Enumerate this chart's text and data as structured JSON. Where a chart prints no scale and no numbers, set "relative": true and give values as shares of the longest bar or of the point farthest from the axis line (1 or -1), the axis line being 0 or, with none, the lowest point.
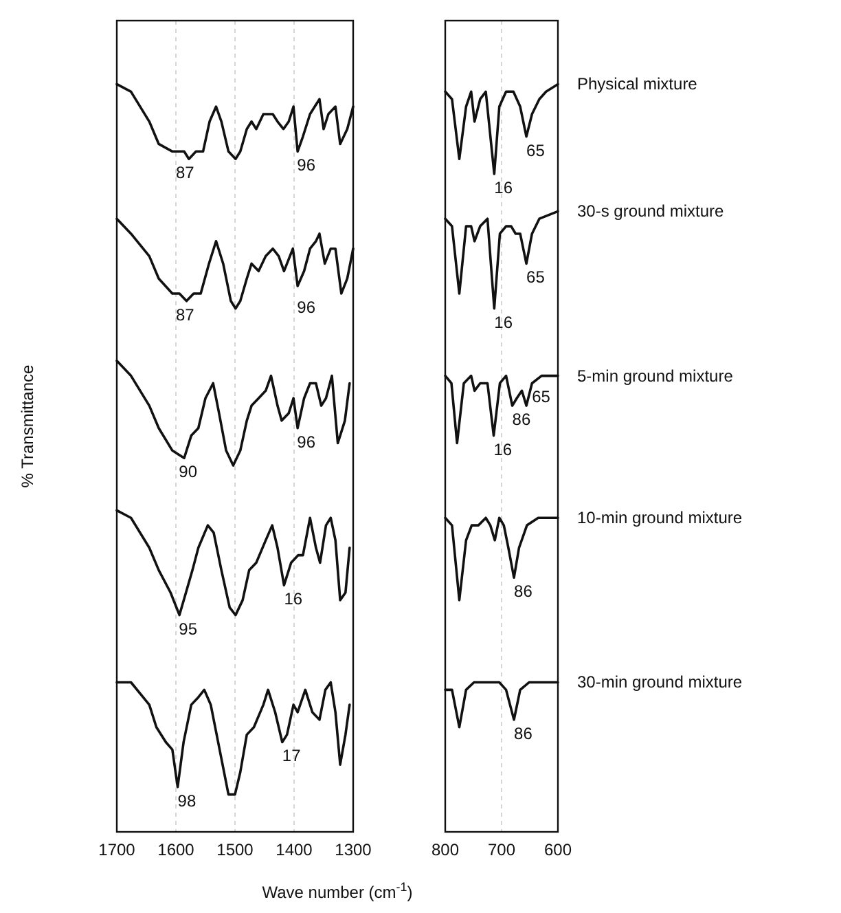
{
  "chart_data": [
    {
      "type": "line",
      "relative": true,
      "xlabel": "Wave number (cm$^{-1}$)",
      "ylabel": "% Transmittance",
      "xlim": [
        1700,
        1300
      ],
      "xticks": [
        1700,
        1600,
        1500,
        1400,
        1300
      ],
      "grid": "x",
      "series": [
        {
          "color": "#111111",
          "x": [
            1700,
            1676,
            1645,
            1629,
            1606,
            1594,
            1586,
            1578,
            1566,
            1554,
            1543,
            1532,
            1523,
            1511,
            1499,
            1491,
            1480,
            1472,
            1464,
            1452,
            1436,
            1428,
            1418,
            1409,
            1401,
            1394,
            1385,
            1373,
            1365,
            1357,
            1350,
            1342,
            1330,
            1322,
            1310,
            1300
          ],
          "values": [
            1.0,
            0.99,
            0.95,
            0.92,
            0.91,
            0.91,
            0.91,
            0.9,
            0.91,
            0.91,
            0.95,
            0.97,
            0.95,
            0.91,
            0.9,
            0.91,
            0.94,
            0.95,
            0.94,
            0.96,
            0.96,
            0.95,
            0.94,
            0.95,
            0.97,
            0.91,
            0.93,
            0.96,
            0.97,
            0.98,
            0.94,
            0.96,
            0.97,
            0.92,
            0.94,
            0.97
          ]
        },
        {
          "color": "#111111",
          "x": [
            1700,
            1676,
            1645,
            1629,
            1606,
            1594,
            1582,
            1570,
            1558,
            1544,
            1532,
            1520,
            1507,
            1499,
            1491,
            1480,
            1472,
            1460,
            1448,
            1436,
            1426,
            1417,
            1402,
            1394,
            1383,
            1373,
            1363,
            1357,
            1348,
            1338,
            1330,
            1320,
            1310,
            1300
          ],
          "values": [
            0.82,
            0.8,
            0.77,
            0.74,
            0.72,
            0.72,
            0.71,
            0.72,
            0.72,
            0.76,
            0.79,
            0.76,
            0.71,
            0.7,
            0.71,
            0.74,
            0.76,
            0.75,
            0.77,
            0.78,
            0.77,
            0.75,
            0.78,
            0.73,
            0.75,
            0.78,
            0.79,
            0.8,
            0.76,
            0.78,
            0.78,
            0.72,
            0.74,
            0.78
          ]
        },
        {
          "color": "#111111",
          "x": [
            1700,
            1676,
            1645,
            1629,
            1606,
            1586,
            1574,
            1562,
            1550,
            1537,
            1527,
            1515,
            1503,
            1491,
            1480,
            1472,
            1460,
            1448,
            1439,
            1428,
            1421,
            1409,
            1401,
            1394,
            1383,
            1373,
            1363,
            1354,
            1346,
            1336,
            1326,
            1314,
            1306
          ],
          "values": [
            0.63,
            0.61,
            0.57,
            0.54,
            0.51,
            0.5,
            0.53,
            0.54,
            0.58,
            0.6,
            0.56,
            0.51,
            0.49,
            0.51,
            0.55,
            0.57,
            0.58,
            0.59,
            0.61,
            0.57,
            0.55,
            0.56,
            0.58,
            0.54,
            0.58,
            0.6,
            0.6,
            0.57,
            0.58,
            0.61,
            0.52,
            0.55,
            0.6
          ]
        },
        {
          "color": "#111111",
          "x": [
            1700,
            1676,
            1645,
            1629,
            1609,
            1594,
            1583,
            1572,
            1562,
            1546,
            1536,
            1523,
            1509,
            1499,
            1487,
            1476,
            1464,
            1448,
            1437,
            1428,
            1417,
            1405,
            1393,
            1385,
            1373,
            1363,
            1356,
            1346,
            1338,
            1330,
            1322,
            1313,
            1306
          ],
          "values": [
            0.43,
            0.42,
            0.38,
            0.35,
            0.32,
            0.29,
            0.32,
            0.35,
            0.38,
            0.41,
            0.4,
            0.35,
            0.3,
            0.29,
            0.31,
            0.35,
            0.36,
            0.39,
            0.41,
            0.38,
            0.33,
            0.36,
            0.37,
            0.37,
            0.42,
            0.38,
            0.36,
            0.41,
            0.42,
            0.39,
            0.31,
            0.32,
            0.38
          ]
        },
        {
          "color": "#111111",
          "x": [
            1700,
            1676,
            1645,
            1633,
            1617,
            1606,
            1597,
            1587,
            1574,
            1562,
            1552,
            1541,
            1526,
            1511,
            1500,
            1491,
            1480,
            1468,
            1452,
            1444,
            1432,
            1420,
            1412,
            1401,
            1394,
            1381,
            1369,
            1357,
            1347,
            1338,
            1330,
            1322,
            1313,
            1306
          ],
          "values": [
            0.2,
            0.2,
            0.17,
            0.14,
            0.12,
            0.11,
            0.06,
            0.12,
            0.17,
            0.18,
            0.19,
            0.17,
            0.11,
            0.05,
            0.05,
            0.08,
            0.13,
            0.14,
            0.17,
            0.19,
            0.16,
            0.12,
            0.13,
            0.17,
            0.16,
            0.19,
            0.16,
            0.15,
            0.19,
            0.2,
            0.16,
            0.09,
            0.13,
            0.17
          ]
        }
      ],
      "annotations": [
        {
          "text": "87",
          "x": 1600,
          "y": 0.9
        },
        {
          "text": "96",
          "x": 1395,
          "y": 0.91
        },
        {
          "text": "87",
          "x": 1600,
          "y": 0.71
        },
        {
          "text": "96",
          "x": 1395,
          "y": 0.72
        },
        {
          "text": "90",
          "x": 1595,
          "y": 0.5
        },
        {
          "text": "96",
          "x": 1395,
          "y": 0.54
        },
        {
          "text": "95",
          "x": 1595,
          "y": 0.29
        },
        {
          "text": "16",
          "x": 1417,
          "y": 0.33
        },
        {
          "text": "98",
          "x": 1597,
          "y": 0.06
        },
        {
          "text": "17",
          "x": 1420,
          "y": 0.12
        }
      ]
    },
    {
      "type": "line",
      "relative": true,
      "xlim": [
        800,
        600
      ],
      "xticks": [
        800,
        700,
        600
      ],
      "grid": "x",
      "series": [
        {
          "name": "Physical mixture",
          "color": "#111111",
          "x": [
            800,
            788,
            775,
            763,
            754,
            748,
            738,
            728,
            713,
            704,
            692,
            679,
            667,
            656,
            646,
            633,
            621,
            600
          ],
          "values": [
            0.99,
            0.98,
            0.9,
            0.97,
            0.99,
            0.95,
            0.98,
            0.99,
            0.88,
            0.97,
            0.99,
            0.99,
            0.97,
            0.93,
            0.96,
            0.98,
            0.99,
            1.0
          ]
        },
        {
          "name": "30-s ground mixture",
          "color": "#111111",
          "x": [
            800,
            788,
            775,
            763,
            754,
            748,
            738,
            725,
            713,
            703,
            692,
            683,
            675,
            667,
            656,
            646,
            633,
            600
          ],
          "values": [
            0.82,
            0.81,
            0.72,
            0.81,
            0.81,
            0.79,
            0.81,
            0.82,
            0.7,
            0.8,
            0.81,
            0.81,
            0.8,
            0.8,
            0.76,
            0.8,
            0.82,
            0.83
          ]
        },
        {
          "name": "5-min ground mixture",
          "color": "#111111",
          "x": [
            800,
            789,
            779,
            767,
            754,
            748,
            738,
            725,
            714,
            703,
            692,
            681,
            673,
            664,
            656,
            646,
            629,
            600
          ],
          "values": [
            0.61,
            0.6,
            0.52,
            0.6,
            0.61,
            0.59,
            0.6,
            0.6,
            0.53,
            0.6,
            0.61,
            0.57,
            0.58,
            0.59,
            0.57,
            0.6,
            0.61,
            0.61
          ]
        },
        {
          "name": "10-min ground mixture",
          "color": "#111111",
          "x": [
            800,
            788,
            775,
            763,
            753,
            741,
            728,
            720,
            712,
            704,
            696,
            688,
            678,
            669,
            655,
            635,
            600
          ],
          "values": [
            0.42,
            0.41,
            0.31,
            0.39,
            0.41,
            0.41,
            0.42,
            0.41,
            0.39,
            0.42,
            0.41,
            0.38,
            0.34,
            0.38,
            0.41,
            0.42,
            0.42
          ]
        },
        {
          "name": "30-min ground mixture",
          "color": "#111111",
          "x": [
            800,
            788,
            775,
            763,
            749,
            725,
            704,
            692,
            678,
            667,
            651,
            619,
            600
          ],
          "values": [
            0.19,
            0.19,
            0.14,
            0.19,
            0.2,
            0.2,
            0.2,
            0.19,
            0.15,
            0.19,
            0.2,
            0.2,
            0.2
          ]
        }
      ],
      "annotations": [
        {
          "text": "16",
          "x": 713,
          "y": 0.88
        },
        {
          "text": "65",
          "x": 656,
          "y": 0.93
        },
        {
          "text": "16",
          "x": 713,
          "y": 0.7
        },
        {
          "text": "65",
          "x": 656,
          "y": 0.76
        },
        {
          "text": "16",
          "x": 714,
          "y": 0.53
        },
        {
          "text": "86",
          "x": 681,
          "y": 0.57
        },
        {
          "text": "65",
          "x": 646,
          "y": 0.6
        },
        {
          "text": "86",
          "x": 678,
          "y": 0.34
        },
        {
          "text": "86",
          "x": 678,
          "y": 0.15
        }
      ]
    }
  ]
}
